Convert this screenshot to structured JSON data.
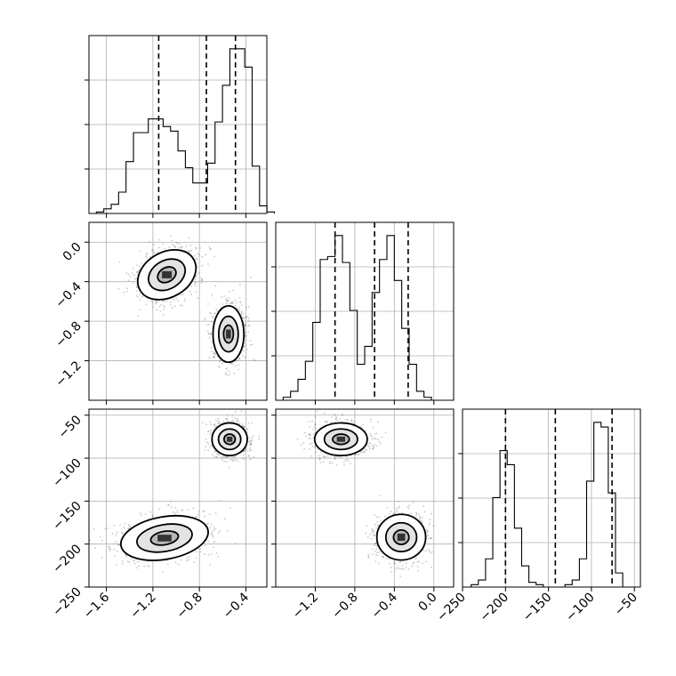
{
  "chart_data": {
    "type": "corner",
    "grid": true,
    "parameters": [
      {
        "id": "p0",
        "range": [
          -1.75,
          -0.22
        ],
        "ticks": [
          -1.6,
          -1.2,
          -0.8,
          -0.4
        ],
        "tick_labels": [
          "−1.6",
          "−1.2",
          "−0.8",
          "−0.4"
        ],
        "hist_bin_start": -1.75,
        "hist_bin_width": 0.0638,
        "hist_counts": [
          0,
          1,
          3,
          6,
          14,
          34,
          53,
          53,
          62,
          62,
          57,
          54,
          41,
          30,
          20,
          20,
          33,
          60,
          84,
          108,
          108,
          96,
          31,
          5,
          1
        ],
        "quantiles": [
          -1.15,
          -0.74,
          -0.49
        ]
      },
      {
        "id": "p1",
        "range": [
          -1.6,
          0.2
        ],
        "ticks": [
          -1.2,
          -0.8,
          -0.4,
          0.0
        ],
        "tick_labels": [
          "−1.2",
          "−0.8",
          "−0.4",
          "0.0"
        ],
        "hist_bin_start": -1.6,
        "hist_bin_width": 0.075,
        "hist_counts": [
          0,
          1,
          3,
          7,
          13,
          26,
          47,
          48,
          55,
          46,
          30,
          12,
          18,
          36,
          47,
          55,
          40,
          24,
          12,
          3,
          1,
          0,
          0,
          0
        ],
        "quantiles": [
          -1.0,
          -0.6,
          -0.26
        ]
      },
      {
        "id": "p2",
        "range": [
          -250,
          -43
        ],
        "ticks": [
          -250,
          -200,
          -150,
          -100,
          -50
        ],
        "tick_labels": [
          "−250",
          "−200",
          "−150",
          "−100",
          "−50"
        ],
        "hist_bin_start": -240,
        "hist_bin_width": 8.4,
        "hist_counts": [
          1,
          3,
          12,
          38,
          58,
          52,
          25,
          9,
          2,
          1,
          0,
          0,
          0,
          1,
          3,
          12,
          45,
          70,
          68,
          40,
          6,
          0
        ],
        "quantiles": [
          -200,
          -142,
          -76
        ]
      }
    ],
    "panels_2d": [
      {
        "x": "p0",
        "y": "p1",
        "modes": [
          {
            "center": [
              -1.08,
              -0.33
            ],
            "spread": [
              0.14,
              0.12
            ],
            "rotation_deg": -30,
            "levels": [
              0.6,
              1.2,
              1.9
            ]
          },
          {
            "center": [
              -0.55,
              -0.93
            ],
            "spread": [
              0.07,
              0.15
            ],
            "rotation_deg": 0,
            "levels": [
              0.6,
              1.2,
              1.9
            ]
          }
        ]
      },
      {
        "x": "p0",
        "y": "p2",
        "modes": [
          {
            "center": [
              -0.54,
              -78
            ],
            "spread": [
              0.08,
              10
            ],
            "rotation_deg": 0,
            "levels": [
              0.6,
              1.2,
              1.9
            ]
          },
          {
            "center": [
              -1.1,
              -193
            ],
            "spread": [
              0.2,
              13
            ],
            "rotation_deg": -10,
            "levels": [
              0.6,
              1.2,
              1.9
            ]
          }
        ]
      },
      {
        "x": "p1",
        "y": "p2",
        "modes": [
          {
            "center": [
              -0.94,
              -78
            ],
            "spread": [
              0.14,
              10
            ],
            "rotation_deg": 0,
            "levels": [
              0.6,
              1.2,
              1.9
            ]
          },
          {
            "center": [
              -0.33,
              -192
            ],
            "spread": [
              0.13,
              14
            ],
            "rotation_deg": 0,
            "levels": [
              0.6,
              1.2,
              1.9
            ]
          }
        ]
      }
    ]
  }
}
